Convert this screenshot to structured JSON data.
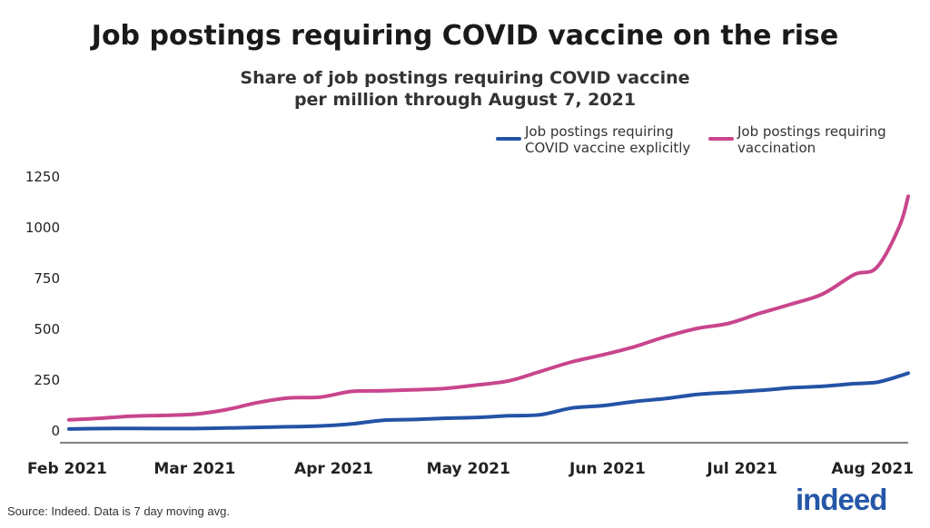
{
  "title": "Job postings requiring COVID vaccine on the rise",
  "subtitle_line1": "Share of job postings requiring COVID vaccine",
  "subtitle_line2": "per million through August 7, 2021",
  "source": "Source: Indeed. Data is 7 day moving avg.",
  "logo": "indeed",
  "colors": {
    "explicit": "#2453a6",
    "vaccination": "#c8458c",
    "axis": "#555555"
  },
  "chart_data": {
    "type": "line",
    "ylim": [
      0,
      1250
    ],
    "yticks": [
      0,
      250,
      500,
      750,
      1000,
      1250
    ],
    "xlabels": [
      "Feb 2021",
      "Mar 2021",
      "Apr 2021",
      "May 2021",
      "Jun 2021",
      "Jul 2021",
      "Aug 2021"
    ],
    "x_range_days": [
      0,
      187
    ],
    "xlabel_days": [
      0,
      28,
      59,
      89,
      120,
      150,
      181
    ],
    "legend": {
      "placement": "top-right"
    },
    "grid": false,
    "series": [
      {
        "name": "Job postings requiring COVID vaccine explicitly",
        "legend_line1": "Job postings requiring",
        "legend_line2": "COVID vaccine explicitly",
        "color": "#2453a6",
        "days": [
          0,
          7,
          14,
          21,
          28,
          35,
          42,
          49,
          56,
          63,
          70,
          77,
          84,
          91,
          98,
          105,
          112,
          119,
          126,
          133,
          140,
          147,
          154,
          161,
          168,
          175,
          180,
          185,
          187
        ],
        "values": [
          5,
          7,
          8,
          7,
          7,
          10,
          13,
          16,
          20,
          30,
          48,
          52,
          58,
          62,
          70,
          75,
          108,
          120,
          140,
          155,
          175,
          185,
          195,
          208,
          215,
          228,
          235,
          265,
          280
        ]
      },
      {
        "name": "Job postings requiring vaccination",
        "legend_line1": "Job postings requiring",
        "legend_line2": "vaccination",
        "color": "#c8458c",
        "days": [
          0,
          7,
          14,
          21,
          28,
          35,
          42,
          49,
          56,
          63,
          70,
          77,
          84,
          91,
          98,
          105,
          112,
          119,
          126,
          133,
          140,
          147,
          154,
          161,
          168,
          175,
          180,
          185,
          187
        ],
        "values": [
          50,
          58,
          68,
          72,
          78,
          100,
          135,
          158,
          162,
          190,
          193,
          198,
          205,
          222,
          242,
          288,
          335,
          370,
          410,
          460,
          500,
          525,
          575,
          620,
          670,
          765,
          800,
          1000,
          1150
        ]
      }
    ]
  }
}
